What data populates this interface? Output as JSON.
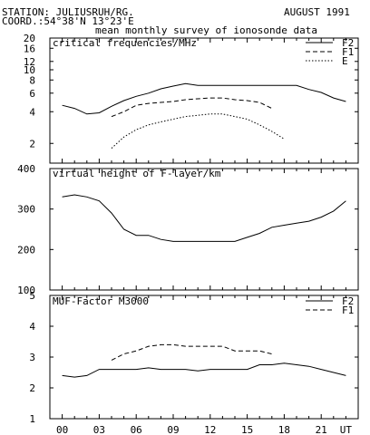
{
  "header": {
    "station": "STATION: JULIUSRUH/RG.",
    "coord": "COORD.:54°38'N 13°23'E",
    "date": "AUGUST 1991",
    "title": "mean monthly survey of ionosonde data"
  },
  "chart_data": [
    {
      "type": "line",
      "title": "critical frequencies/MHz",
      "yscale": "log",
      "ylim": [
        1.3,
        20
      ],
      "yticks": [
        2,
        4,
        6,
        8,
        10,
        12,
        16,
        20
      ],
      "xlim": [
        -1,
        24
      ],
      "xticks": [
        "00",
        "03",
        "06",
        "09",
        "12",
        "15",
        "18",
        "21",
        "UT"
      ],
      "legend": "top-right",
      "series": [
        {
          "name": "F2",
          "style": "solid",
          "x": [
            0,
            1,
            2,
            3,
            4,
            5,
            6,
            7,
            8,
            9,
            10,
            11,
            12,
            13,
            14,
            15,
            16,
            17,
            18,
            19,
            20,
            21,
            22,
            23
          ],
          "y": [
            4.6,
            4.3,
            3.8,
            3.9,
            4.5,
            5.1,
            5.6,
            6.0,
            6.6,
            7.0,
            7.4,
            7.1,
            7.1,
            7.1,
            7.1,
            7.1,
            7.1,
            7.1,
            7.1,
            7.1,
            6.5,
            6.1,
            5.4,
            5.0
          ]
        },
        {
          "name": "F1",
          "style": "dashed",
          "x": [
            4,
            5,
            6,
            7,
            8,
            9,
            10,
            11,
            12,
            13,
            14,
            15,
            16,
            17
          ],
          "y": [
            3.6,
            4.0,
            4.6,
            4.8,
            4.9,
            5.0,
            5.2,
            5.3,
            5.4,
            5.4,
            5.2,
            5.1,
            4.9,
            4.3
          ]
        },
        {
          "name": "E",
          "style": "dotted",
          "x": [
            4,
            5,
            6,
            7,
            8,
            9,
            10,
            11,
            12,
            13,
            14,
            15,
            16,
            17,
            18
          ],
          "y": [
            1.8,
            2.3,
            2.7,
            3.0,
            3.2,
            3.4,
            3.6,
            3.7,
            3.8,
            3.8,
            3.6,
            3.4,
            3.0,
            2.6,
            2.2
          ]
        }
      ]
    },
    {
      "type": "line",
      "title": "virtual height of F-layer/km",
      "ylim": [
        100,
        400
      ],
      "yticks": [
        100,
        200,
        300,
        400
      ],
      "xlim": [
        -1,
        24
      ],
      "xticks": [
        "00",
        "03",
        "06",
        "09",
        "12",
        "15",
        "18",
        "21",
        "UT"
      ],
      "series": [
        {
          "style": "solid",
          "x": [
            0,
            1,
            2,
            3,
            4,
            5,
            6,
            7,
            8,
            9,
            10,
            11,
            12,
            13,
            14,
            15,
            16,
            17,
            18,
            19,
            20,
            21,
            22,
            23
          ],
          "y": [
            330,
            335,
            330,
            320,
            290,
            250,
            235,
            235,
            225,
            220,
            220,
            220,
            220,
            220,
            220,
            230,
            240,
            255,
            260,
            265,
            270,
            280,
            295,
            320
          ]
        }
      ]
    },
    {
      "type": "line",
      "title": "MUF-Factor M3000",
      "ylim": [
        1,
        5
      ],
      "yticks": [
        1,
        2,
        3,
        4,
        5
      ],
      "xlim": [
        -1,
        24
      ],
      "xticks": [
        "00",
        "03",
        "06",
        "09",
        "12",
        "15",
        "18",
        "21",
        "UT"
      ],
      "legend": "top-right",
      "series": [
        {
          "name": "F2",
          "style": "solid",
          "x": [
            0,
            1,
            2,
            3,
            4,
            5,
            6,
            7,
            8,
            9,
            10,
            11,
            12,
            13,
            14,
            15,
            16,
            17,
            18,
            19,
            20,
            21,
            22,
            23
          ],
          "y": [
            2.4,
            2.35,
            2.4,
            2.6,
            2.6,
            2.6,
            2.6,
            2.65,
            2.6,
            2.6,
            2.6,
            2.55,
            2.6,
            2.6,
            2.6,
            2.6,
            2.75,
            2.75,
            2.8,
            2.75,
            2.7,
            2.6,
            2.5,
            2.4
          ]
        },
        {
          "name": "F1",
          "style": "dashed",
          "x": [
            4,
            5,
            6,
            7,
            8,
            9,
            10,
            11,
            12,
            13,
            14,
            15,
            16,
            17
          ],
          "y": [
            2.9,
            3.1,
            3.2,
            3.35,
            3.4,
            3.4,
            3.35,
            3.35,
            3.35,
            3.35,
            3.2,
            3.2,
            3.2,
            3.1
          ]
        }
      ]
    }
  ]
}
